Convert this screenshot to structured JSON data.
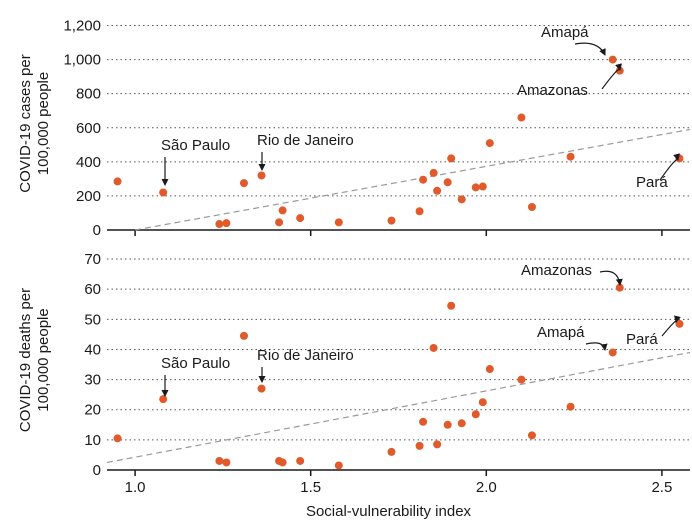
{
  "chart_data": [
    {
      "type": "scatter",
      "ylabel_lines": [
        "COVID-19 cases per",
        "100,000 people"
      ],
      "xlim": [
        0.92,
        2.58
      ],
      "ylim": [
        0,
        1250
      ],
      "yticks": [
        0,
        200,
        400,
        600,
        800,
        1000,
        1200
      ],
      "ytick_labels": [
        "0",
        "200",
        "400",
        "600",
        "800",
        "1,000",
        "1,200"
      ],
      "grid": "horizontal-dotted",
      "marker_color": "#e05a2b",
      "trendline": {
        "x": [
          1.0,
          2.58
        ],
        "y": [
          0,
          590
        ],
        "color": "#999999"
      },
      "points": [
        {
          "x": 0.95,
          "y": 285
        },
        {
          "x": 1.08,
          "y": 220
        },
        {
          "x": 1.24,
          "y": 35
        },
        {
          "x": 1.26,
          "y": 40
        },
        {
          "x": 1.31,
          "y": 275
        },
        {
          "x": 1.36,
          "y": 320
        },
        {
          "x": 1.41,
          "y": 45
        },
        {
          "x": 1.42,
          "y": 115
        },
        {
          "x": 1.47,
          "y": 70
        },
        {
          "x": 1.58,
          "y": 45
        },
        {
          "x": 1.73,
          "y": 55
        },
        {
          "x": 1.81,
          "y": 110
        },
        {
          "x": 1.82,
          "y": 295
        },
        {
          "x": 1.85,
          "y": 335
        },
        {
          "x": 1.86,
          "y": 230
        },
        {
          "x": 1.89,
          "y": 280
        },
        {
          "x": 1.9,
          "y": 420
        },
        {
          "x": 1.93,
          "y": 180
        },
        {
          "x": 1.97,
          "y": 250
        },
        {
          "x": 1.99,
          "y": 255
        },
        {
          "x": 2.01,
          "y": 510
        },
        {
          "x": 2.1,
          "y": 660
        },
        {
          "x": 2.13,
          "y": 135
        },
        {
          "x": 2.24,
          "y": 430
        },
        {
          "x": 2.36,
          "y": 1000
        },
        {
          "x": 2.38,
          "y": 935
        },
        {
          "x": 2.55,
          "y": 420
        }
      ],
      "annotations": [
        {
          "text": "São Paulo",
          "x": 1.08,
          "y": 220
        },
        {
          "text": "Rio de Janeiro",
          "x": 1.36,
          "y": 320
        },
        {
          "text": "Amapá",
          "x": 2.36,
          "y": 1000
        },
        {
          "text": "Amazonas",
          "x": 2.38,
          "y": 935
        },
        {
          "text": "Pará",
          "x": 2.55,
          "y": 420
        }
      ]
    },
    {
      "type": "scatter",
      "xlabel": "Social-vulnerability index",
      "ylabel_lines": [
        "COVID-19 deaths per",
        "100,000 people"
      ],
      "xlim": [
        0.92,
        2.58
      ],
      "ylim": [
        0,
        73
      ],
      "xticks": [
        1.0,
        1.5,
        2.0,
        2.5
      ],
      "xtick_labels": [
        "1.0",
        "1.5",
        "2.0",
        "2.5"
      ],
      "yticks": [
        0,
        10,
        20,
        30,
        40,
        50,
        60,
        70
      ],
      "ytick_labels": [
        "0",
        "10",
        "20",
        "30",
        "40",
        "50",
        "60",
        "70"
      ],
      "grid": "horizontal-dotted",
      "marker_color": "#e05a2b",
      "trendline": {
        "x": [
          0.92,
          2.58
        ],
        "y": [
          2.5,
          39
        ],
        "color": "#999999"
      },
      "points": [
        {
          "x": 0.95,
          "y": 10.5
        },
        {
          "x": 1.08,
          "y": 23.5
        },
        {
          "x": 1.24,
          "y": 3
        },
        {
          "x": 1.26,
          "y": 2.5
        },
        {
          "x": 1.31,
          "y": 44.5
        },
        {
          "x": 1.36,
          "y": 27
        },
        {
          "x": 1.41,
          "y": 3
        },
        {
          "x": 1.42,
          "y": 2.5
        },
        {
          "x": 1.47,
          "y": 3
        },
        {
          "x": 1.58,
          "y": 1.5
        },
        {
          "x": 1.73,
          "y": 6
        },
        {
          "x": 1.81,
          "y": 8
        },
        {
          "x": 1.82,
          "y": 16
        },
        {
          "x": 1.85,
          "y": 40.5
        },
        {
          "x": 1.86,
          "y": 8.5
        },
        {
          "x": 1.89,
          "y": 15
        },
        {
          "x": 1.9,
          "y": 54.5
        },
        {
          "x": 1.93,
          "y": 15.5
        },
        {
          "x": 1.97,
          "y": 18.5
        },
        {
          "x": 1.99,
          "y": 22.5
        },
        {
          "x": 2.01,
          "y": 33.5
        },
        {
          "x": 2.1,
          "y": 30
        },
        {
          "x": 2.13,
          "y": 11.5
        },
        {
          "x": 2.24,
          "y": 21
        },
        {
          "x": 2.36,
          "y": 39
        },
        {
          "x": 2.38,
          "y": 60.5
        },
        {
          "x": 2.55,
          "y": 48.5
        }
      ],
      "annotations": [
        {
          "text": "São Paulo",
          "x": 1.08,
          "y": 23.5
        },
        {
          "text": "Rio de Janeiro",
          "x": 1.36,
          "y": 27
        },
        {
          "text": "Amazonas",
          "x": 2.38,
          "y": 60.5
        },
        {
          "text": "Amapá",
          "x": 2.36,
          "y": 39
        },
        {
          "text": "Pará",
          "x": 2.55,
          "y": 48.5
        }
      ]
    }
  ]
}
